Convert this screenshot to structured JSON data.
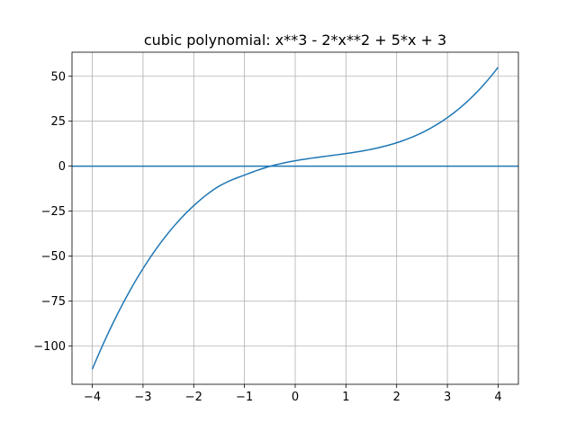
{
  "chart_data": {
    "type": "line",
    "title": "cubic polynomial: x**3 - 2*x**2 + 5*x + 3",
    "xlabel": "",
    "ylabel": "",
    "xlim": [
      -4.4,
      4.4
    ],
    "ylim": [
      -121.4,
      63.4
    ],
    "grid": true,
    "x_ticks": [
      -4,
      -3,
      -2,
      -1,
      0,
      1,
      2,
      3,
      4
    ],
    "x_tick_labels": [
      "−4",
      "−3",
      "−2",
      "−1",
      "0",
      "1",
      "2",
      "3",
      "4"
    ],
    "y_ticks": [
      50,
      25,
      0,
      -25,
      -50,
      -75,
      -100
    ],
    "y_tick_labels": [
      "50",
      "25",
      "0",
      "−25",
      "−50",
      "−75",
      "−100"
    ],
    "series": [
      {
        "color": "#1f77b4",
        "x": [
          -4,
          -3.5,
          -3,
          -2.5,
          -2,
          -1.5,
          -1,
          -0.5,
          0,
          0.5,
          1,
          1.5,
          2,
          2.5,
          3,
          3.5,
          4
        ],
        "y": [
          -113,
          -82.125,
          -57,
          -37.125,
          -22,
          -11.125,
          -5,
          -0.125,
          3,
          5.125,
          7,
          9.375,
          13,
          18.625,
          27,
          38.875,
          55
        ]
      }
    ],
    "hlines": [
      {
        "y": 0,
        "color": "#1f77b4"
      }
    ]
  }
}
